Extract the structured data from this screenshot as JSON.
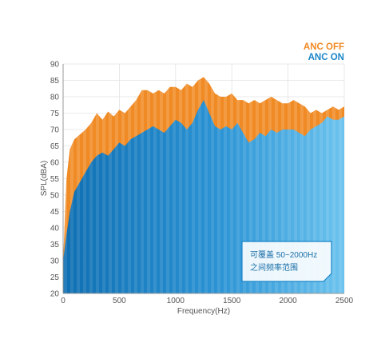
{
  "chart_data": {
    "type": "area",
    "title": "",
    "xlabel": "Frequency(Hz)",
    "ylabel": "SPL(dBA)",
    "xlim": [
      0,
      2500
    ],
    "ylim": [
      20,
      90
    ],
    "grid": true,
    "legend_placement": "top-right",
    "xticks": [
      0,
      500,
      1000,
      1500,
      2000,
      2500
    ],
    "yticks": [
      20,
      25,
      30,
      35,
      40,
      45,
      50,
      55,
      60,
      65,
      70,
      75,
      80,
      85,
      90
    ],
    "annotation": {
      "line1": "可覆盖 50~2000Hz",
      "line2": "之间频率范围"
    },
    "series": [
      {
        "name": "ANC OFF",
        "color": "#f08a24",
        "x": [
          0,
          30,
          60,
          100,
          150,
          200,
          250,
          300,
          350,
          400,
          450,
          500,
          550,
          600,
          650,
          700,
          750,
          800,
          850,
          900,
          950,
          1000,
          1050,
          1100,
          1150,
          1200,
          1250,
          1300,
          1350,
          1400,
          1450,
          1500,
          1550,
          1600,
          1650,
          1700,
          1750,
          1800,
          1850,
          1900,
          1950,
          2000,
          2050,
          2100,
          2150,
          2200,
          2250,
          2300,
          2350,
          2400,
          2450,
          2500
        ],
        "y": [
          30,
          55,
          64,
          67,
          68.5,
          70,
          72,
          75,
          73,
          75.5,
          74,
          76,
          75,
          77,
          79,
          82,
          82,
          81,
          82,
          81,
          83,
          83,
          82,
          84,
          83,
          85,
          86,
          84,
          81,
          80,
          80,
          81,
          79,
          79,
          78,
          79,
          78,
          79,
          80,
          79,
          78,
          78,
          79,
          78,
          77,
          75,
          76,
          75,
          76,
          77,
          76,
          77
        ]
      },
      {
        "name": "ANC ON",
        "color": "#1a86c8",
        "x": [
          0,
          30,
          60,
          100,
          150,
          200,
          250,
          300,
          350,
          400,
          450,
          500,
          550,
          600,
          650,
          700,
          750,
          800,
          850,
          900,
          950,
          1000,
          1050,
          1100,
          1150,
          1200,
          1250,
          1300,
          1350,
          1400,
          1450,
          1500,
          1550,
          1600,
          1650,
          1700,
          1750,
          1800,
          1850,
          1900,
          1950,
          2000,
          2050,
          2100,
          2150,
          2200,
          2250,
          2300,
          2350,
          2400,
          2450,
          2500
        ],
        "y": [
          30,
          38,
          45,
          51,
          54,
          57,
          60,
          62,
          63,
          62,
          64,
          66,
          65,
          67,
          68,
          69,
          70,
          71,
          70,
          69,
          71,
          73,
          72,
          70,
          72,
          76,
          79,
          75,
          71,
          70,
          71,
          70,
          72,
          69,
          66,
          67,
          69,
          68,
          70,
          69,
          70,
          70,
          70,
          69,
          68,
          70,
          71,
          72,
          74,
          73,
          73,
          74
        ]
      }
    ]
  }
}
